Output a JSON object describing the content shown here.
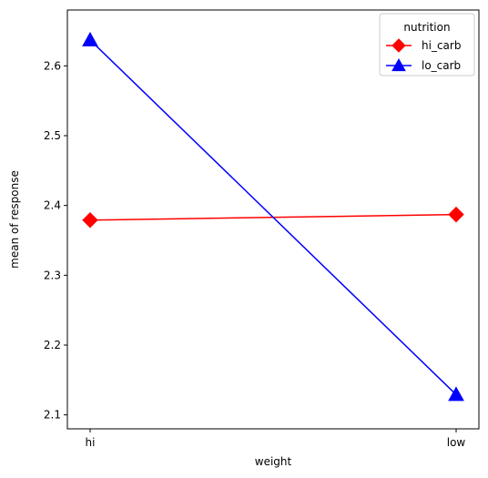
{
  "chart_data": {
    "type": "line",
    "title": "",
    "xlabel": "weight",
    "ylabel": "mean of response",
    "categories": [
      "hi",
      "low"
    ],
    "ylim": [
      2.08,
      2.68
    ],
    "yticks": [
      2.1,
      2.2,
      2.3,
      2.4,
      2.5,
      2.6
    ],
    "ytick_labels": [
      "2.1",
      "2.2",
      "2.3",
      "2.4",
      "2.5",
      "2.6"
    ],
    "grid": false,
    "legend": {
      "title": "nutrition",
      "placement": "top-right"
    },
    "series": [
      {
        "name": "hi_carb",
        "values": [
          2.379,
          2.387
        ],
        "color": "#ff0000",
        "marker": "diamond"
      },
      {
        "name": "lo_carb",
        "values": [
          2.637,
          2.129
        ],
        "color": "#0000ff",
        "marker": "triangle"
      }
    ]
  }
}
